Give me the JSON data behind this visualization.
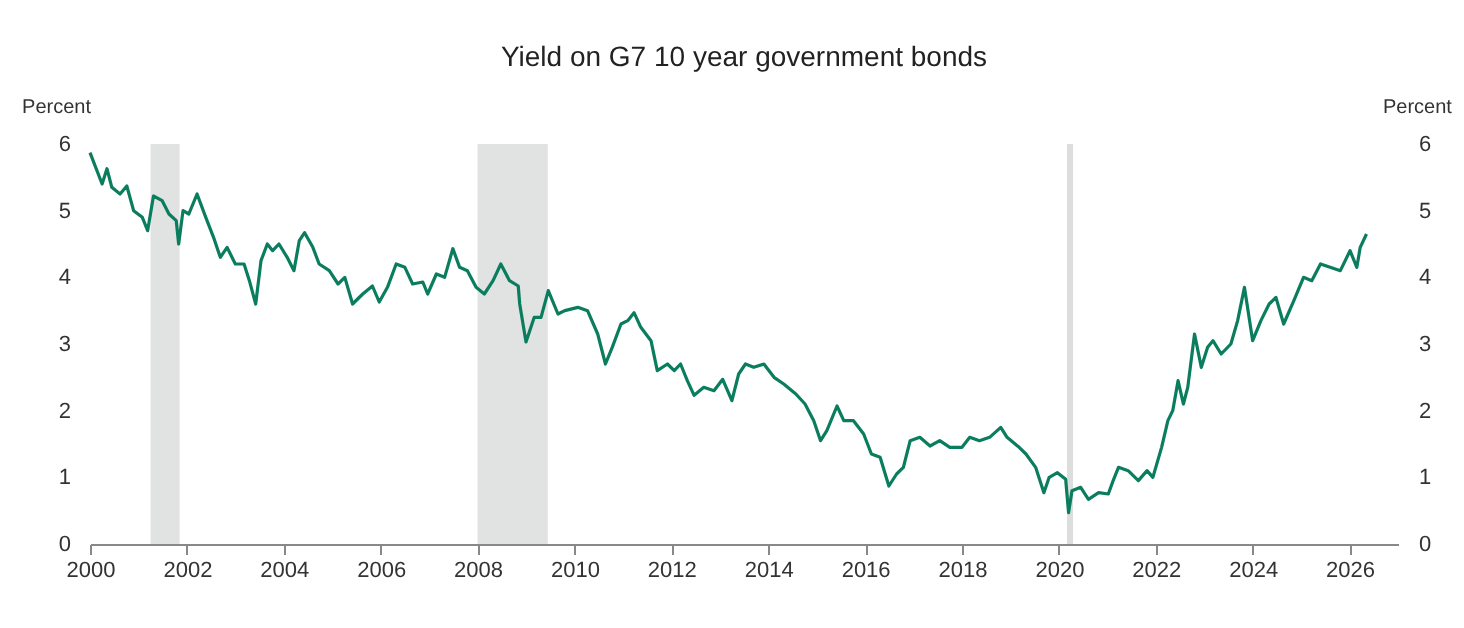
{
  "chart_data": {
    "type": "line",
    "title": "Yield on G7 10 year government bonds",
    "ylabel": "Percent",
    "y2label": "Percent",
    "x": [
      2000.0,
      2000.25,
      2000.35,
      2000.45,
      2000.62,
      2000.76,
      2000.9,
      2001.08,
      2001.19,
      2001.31,
      2001.49,
      2001.63,
      2001.78,
      2001.83,
      2001.92,
      2002.04,
      2002.21,
      2002.39,
      2002.55,
      2002.69,
      2002.83,
      2003.0,
      2003.18,
      2003.29,
      2003.42,
      2003.53,
      2003.66,
      2003.77,
      2003.9,
      2004.07,
      2004.21,
      2004.32,
      2004.43,
      2004.6,
      2004.73,
      2004.94,
      2005.12,
      2005.26,
      2005.42,
      2005.63,
      2005.83,
      2005.97,
      2006.14,
      2006.32,
      2006.5,
      2006.66,
      2006.87,
      2006.97,
      2007.15,
      2007.32,
      2007.49,
      2007.63,
      2007.79,
      2007.97,
      2008.14,
      2008.32,
      2008.48,
      2008.66,
      2008.84,
      2008.87,
      2009.0,
      2009.17,
      2009.31,
      2009.46,
      2009.66,
      2009.8,
      2010.07,
      2010.27,
      2010.48,
      2010.64,
      2010.78,
      2010.96,
      2011.1,
      2011.23,
      2011.37,
      2011.58,
      2011.71,
      2011.92,
      2012.06,
      2012.19,
      2012.33,
      2012.47,
      2012.67,
      2012.88,
      2013.06,
      2013.25,
      2013.39,
      2013.53,
      2013.7,
      2013.91,
      2014.12,
      2014.32,
      2014.57,
      2014.76,
      2014.94,
      2015.08,
      2015.21,
      2015.42,
      2015.56,
      2015.76,
      2015.97,
      2016.13,
      2016.31,
      2016.49,
      2016.65,
      2016.79,
      2016.93,
      2017.13,
      2017.34,
      2017.54,
      2017.75,
      2018.0,
      2018.16,
      2018.36,
      2018.57,
      2018.8,
      2018.93,
      2019.18,
      2019.32,
      2019.52,
      2019.69,
      2019.8,
      2019.97,
      2020.14,
      2020.2,
      2020.27,
      2020.45,
      2020.61,
      2020.82,
      2021.02,
      2021.12,
      2021.23,
      2021.43,
      2021.64,
      2021.82,
      2021.94,
      2022.12,
      2022.25,
      2022.35,
      2022.46,
      2022.57,
      2022.66,
      2022.8,
      2022.94,
      2023.07,
      2023.18,
      2023.35,
      2023.55,
      2023.69,
      2023.83,
      2024.0,
      2024.17,
      2024.34,
      2024.48,
      2024.64,
      2024.85,
      2025.05,
      2025.22,
      2025.4,
      2025.6,
      2025.81,
      2026.01,
      2026.15,
      2026.22,
      2026.35
    ],
    "series": [
      {
        "color": "#0a7d5e",
        "values": [
          5.87,
          5.4,
          5.63,
          5.35,
          5.25,
          5.37,
          5.0,
          4.9,
          4.7,
          5.22,
          5.15,
          4.95,
          4.85,
          4.5,
          5.0,
          4.95,
          5.25,
          4.9,
          4.6,
          4.3,
          4.45,
          4.2,
          4.2,
          3.95,
          3.6,
          4.25,
          4.5,
          4.4,
          4.5,
          4.3,
          4.1,
          4.55,
          4.67,
          4.45,
          4.2,
          4.1,
          3.9,
          4.0,
          3.6,
          3.75,
          3.87,
          3.63,
          3.85,
          4.2,
          4.15,
          3.9,
          3.93,
          3.75,
          4.05,
          4.0,
          4.43,
          4.15,
          4.1,
          3.85,
          3.75,
          3.95,
          4.2,
          3.95,
          3.87,
          3.6,
          3.03,
          3.4,
          3.4,
          3.8,
          3.45,
          3.5,
          3.55,
          3.5,
          3.15,
          2.7,
          2.95,
          3.3,
          3.35,
          3.47,
          3.25,
          3.05,
          2.6,
          2.7,
          2.6,
          2.7,
          2.45,
          2.23,
          2.35,
          2.3,
          2.47,
          2.15,
          2.55,
          2.7,
          2.65,
          2.7,
          2.5,
          2.4,
          2.25,
          2.1,
          1.85,
          1.55,
          1.7,
          2.07,
          1.85,
          1.85,
          1.65,
          1.35,
          1.3,
          0.87,
          1.05,
          1.15,
          1.55,
          1.6,
          1.47,
          1.55,
          1.45,
          1.45,
          1.6,
          1.55,
          1.6,
          1.75,
          1.6,
          1.45,
          1.35,
          1.15,
          0.77,
          1.0,
          1.07,
          0.97,
          0.47,
          0.8,
          0.85,
          0.67,
          0.77,
          0.75,
          0.95,
          1.15,
          1.1,
          0.95,
          1.1,
          1.0,
          1.45,
          1.85,
          2.0,
          2.45,
          2.1,
          2.35,
          3.15,
          2.65,
          2.95,
          3.05,
          2.85,
          3.0,
          3.35,
          3.85,
          3.05,
          3.35,
          3.6,
          3.7,
          3.3,
          3.65,
          4.0,
          3.95,
          4.2,
          4.15,
          4.1,
          4.4,
          4.15,
          4.45,
          4.65
        ]
      }
    ],
    "xlim": [
      2000,
      2027
    ],
    "xticks": [
      2000,
      2002,
      2004,
      2006,
      2008,
      2010,
      2012,
      2014,
      2016,
      2018,
      2020,
      2022,
      2024,
      2026
    ],
    "ylim": [
      0,
      6
    ],
    "yticks": [
      0,
      1,
      2,
      3,
      4,
      5,
      6
    ],
    "y2lim": [
      0,
      6
    ],
    "y2ticks": [
      0,
      1,
      2,
      3,
      4,
      5,
      6
    ],
    "bands": [
      {
        "axis": "x",
        "from": 2001.25,
        "to": 2001.85,
        "color": "#e1e3e3"
      },
      {
        "axis": "x",
        "from": 2008.0,
        "to": 2009.45,
        "color": "#e1e3e3"
      }
    ],
    "ref_lines": [
      {
        "axis": "x",
        "value": 2020.23,
        "color": "#dcdede"
      }
    ],
    "grid": false
  }
}
